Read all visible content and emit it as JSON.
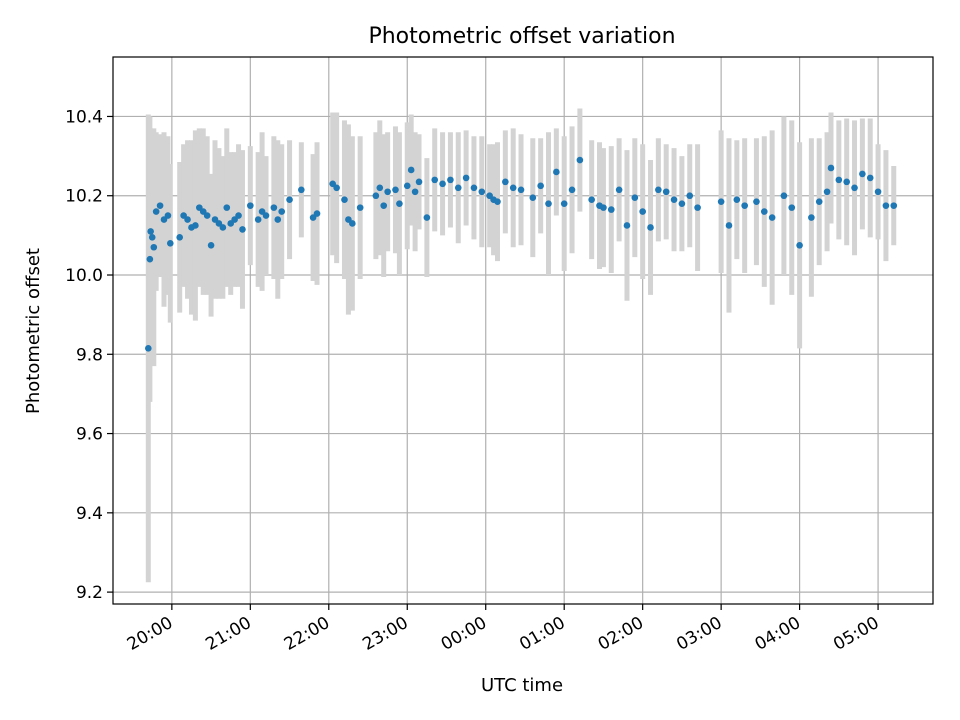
{
  "chart_data": {
    "type": "scatter",
    "title": "Photometric offset variation",
    "xlabel": "UTC time",
    "ylabel": "Photometric offset",
    "grid": true,
    "x_tick_labels": [
      "20:00",
      "21:00",
      "22:00",
      "23:00",
      "00:00",
      "01:00",
      "02:00",
      "03:00",
      "04:00",
      "05:00"
    ],
    "x_ticks_hours": [
      0,
      1,
      2,
      3,
      4,
      5,
      6,
      7,
      8,
      9
    ],
    "x_units": "hours after 20:00 UTC",
    "xlim": [
      -0.75,
      9.7
    ],
    "y_ticks": [
      9.2,
      9.4,
      9.6,
      9.8,
      10.0,
      10.2,
      10.4
    ],
    "y_tick_labels": [
      "9.2",
      "9.4",
      "9.6",
      "9.8",
      "10.0",
      "10.2",
      "10.4"
    ],
    "ylim": [
      9.17,
      10.55
    ],
    "point_color": "#1f77b4",
    "errorbar_color": "#d3d3d3",
    "series": [
      {
        "x": [
          -0.3,
          -0.28,
          -0.27,
          -0.25,
          -0.23,
          -0.2,
          -0.15,
          -0.1,
          -0.05,
          -0.02,
          0.1,
          0.15,
          0.2,
          0.25,
          0.3,
          0.35,
          0.4,
          0.45,
          0.5,
          0.55,
          0.6,
          0.65,
          0.7,
          0.75,
          0.8,
          0.85,
          0.9,
          1.0,
          1.1,
          1.15,
          1.2,
          1.3,
          1.35,
          1.4,
          1.5,
          1.65,
          1.8,
          1.85,
          2.05,
          2.1,
          2.2,
          2.25,
          2.3,
          2.4,
          2.6,
          2.65,
          2.7,
          2.75,
          2.85,
          2.9,
          3.0,
          3.05,
          3.1,
          3.15,
          3.25,
          3.35,
          3.45,
          3.55,
          3.65,
          3.75,
          3.85,
          3.95,
          4.05,
          4.1,
          4.15,
          4.25,
          4.35,
          4.45,
          4.6,
          4.7,
          4.8,
          4.9,
          5.0,
          5.1,
          5.2,
          5.35,
          5.45,
          5.5,
          5.6,
          5.7,
          5.8,
          5.9,
          6.0,
          6.1,
          6.2,
          6.3,
          6.4,
          6.5,
          6.6,
          6.7,
          7.0,
          7.1,
          7.2,
          7.3,
          7.45,
          7.55,
          7.65,
          7.8,
          7.9,
          8.0,
          8.15,
          8.25,
          8.35,
          8.4,
          8.5,
          8.6,
          8.7,
          8.8,
          8.9,
          9.0,
          9.1,
          9.2
        ],
        "y": [
          9.815,
          10.04,
          10.11,
          10.095,
          10.07,
          10.16,
          10.175,
          10.14,
          10.15,
          10.08,
          10.095,
          10.15,
          10.14,
          10.12,
          10.125,
          10.17,
          10.16,
          10.15,
          10.075,
          10.14,
          10.13,
          10.12,
          10.17,
          10.13,
          10.14,
          10.15,
          10.115,
          10.175,
          10.14,
          10.16,
          10.15,
          10.17,
          10.14,
          10.16,
          10.19,
          10.215,
          10.145,
          10.155,
          10.23,
          10.22,
          10.19,
          10.14,
          10.13,
          10.17,
          10.2,
          10.22,
          10.175,
          10.21,
          10.215,
          10.18,
          10.225,
          10.265,
          10.21,
          10.235,
          10.145,
          10.24,
          10.23,
          10.24,
          10.22,
          10.245,
          10.22,
          10.21,
          10.2,
          10.19,
          10.185,
          10.235,
          10.22,
          10.215,
          10.195,
          10.225,
          10.18,
          10.26,
          10.18,
          10.215,
          10.29,
          10.19,
          10.175,
          10.17,
          10.165,
          10.215,
          10.125,
          10.195,
          10.16,
          10.12,
          10.215,
          10.21,
          10.19,
          10.18,
          10.2,
          10.17,
          10.185,
          10.125,
          10.19,
          10.175,
          10.185,
          10.16,
          10.145,
          10.2,
          10.17,
          10.075,
          10.145,
          10.185,
          10.21,
          10.27,
          10.24,
          10.235,
          10.22,
          10.255,
          10.245,
          10.21,
          10.175,
          10.175
        ],
        "err": [
          0.59,
          0.36,
          0.26,
          0.24,
          0.3,
          0.2,
          0.18,
          0.22,
          0.2,
          0.2,
          0.19,
          0.18,
          0.2,
          0.22,
          0.24,
          0.2,
          0.21,
          0.2,
          0.18,
          0.2,
          0.19,
          0.18,
          0.2,
          0.18,
          0.17,
          0.18,
          0.2,
          0.15,
          0.17,
          0.2,
          0.15,
          0.18,
          0.2,
          0.17,
          0.15,
          0.12,
          0.16,
          0.18,
          0.18,
          0.19,
          0.2,
          0.24,
          0.22,
          0.18,
          0.16,
          0.17,
          0.18,
          0.15,
          0.16,
          0.18,
          0.16,
          0.14,
          0.15,
          0.12,
          0.15,
          0.13,
          0.13,
          0.12,
          0.14,
          0.12,
          0.13,
          0.14,
          0.13,
          0.14,
          0.15,
          0.13,
          0.15,
          0.14,
          0.15,
          0.12,
          0.18,
          0.11,
          0.17,
          0.16,
          0.13,
          0.15,
          0.16,
          0.15,
          0.16,
          0.13,
          0.19,
          0.15,
          0.17,
          0.17,
          0.13,
          0.12,
          0.13,
          0.12,
          0.13,
          0.16,
          0.18,
          0.22,
          0.15,
          0.17,
          0.16,
          0.19,
          0.22,
          0.2,
          0.22,
          0.26,
          0.2,
          0.16,
          0.15,
          0.14,
          0.15,
          0.16,
          0.17,
          0.14,
          0.15,
          0.12,
          0.14,
          0.1
        ]
      }
    ]
  }
}
